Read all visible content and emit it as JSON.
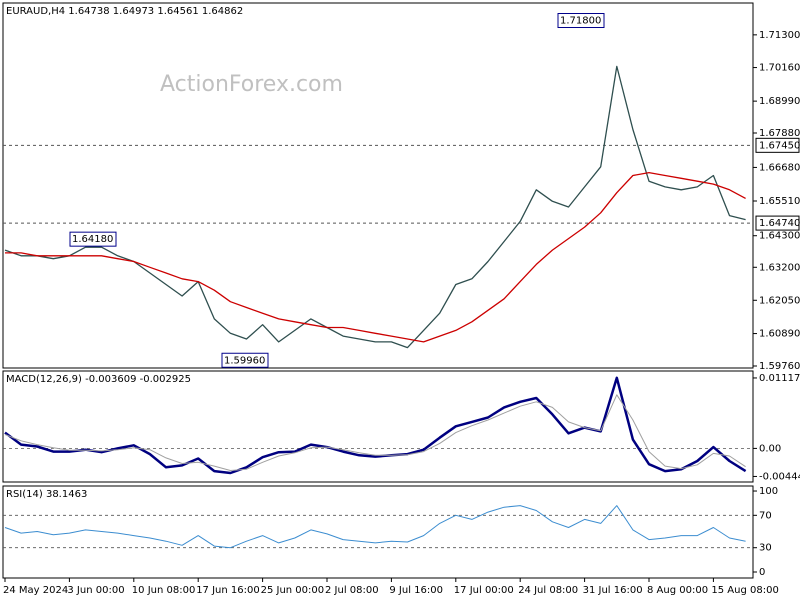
{
  "chart_data": [
    {
      "type": "line",
      "title": "EURAUD,H4  1.64738 1.64973 1.64561 1.64862",
      "watermark": "ActionForex.com",
      "ylim": [
        1.5969,
        1.7241
      ],
      "yticks": [
        {
          "value": 1.713,
          "label": "1.71300"
        },
        {
          "value": 1.7016,
          "label": "1.70160"
        },
        {
          "value": 1.6899,
          "label": "1.68990"
        },
        {
          "value": 1.6788,
          "label": "1.67880"
        },
        {
          "value": 1.6668,
          "label": "1.66680"
        },
        {
          "value": 1.6551,
          "label": "1.65510"
        },
        {
          "value": 1.643,
          "label": "1.64300"
        },
        {
          "value": 1.632,
          "label": "1.63200"
        },
        {
          "value": 1.6205,
          "label": "1.62050"
        },
        {
          "value": 1.6089,
          "label": "1.60890"
        },
        {
          "value": 1.5976,
          "label": "1.59760"
        }
      ],
      "hlines": [
        {
          "value": 1.6745,
          "label": "1.67450"
        },
        {
          "value": 1.6474,
          "label": "1.64740"
        }
      ],
      "annotations": [
        {
          "value": 1.718,
          "label": "1.71800"
        },
        {
          "value": 1.6418,
          "label": "1.64180"
        },
        {
          "value": 1.5996,
          "label": "1.59960"
        }
      ],
      "series": [
        {
          "color": "#2f4f4f",
          "values": [
            1.638,
            1.636,
            1.636,
            1.635,
            1.636,
            1.639,
            1.639,
            1.636,
            1.634,
            1.63,
            1.626,
            1.622,
            1.627,
            1.614,
            1.609,
            1.607,
            1.612,
            1.606,
            1.61,
            1.614,
            1.611,
            1.608,
            1.607,
            1.606,
            1.606,
            1.604,
            1.61,
            1.616,
            1.626,
            1.628,
            1.634,
            1.641,
            1.648,
            1.659,
            1.655,
            1.653,
            1.66,
            1.667,
            1.702,
            1.68,
            1.662,
            1.66,
            1.659,
            1.66,
            1.664,
            1.65,
            1.6486
          ]
        },
        {
          "color": "#cc0000",
          "values": [
            1.637,
            1.637,
            1.636,
            1.636,
            1.636,
            1.636,
            1.636,
            1.635,
            1.634,
            1.632,
            1.63,
            1.628,
            1.627,
            1.624,
            1.62,
            1.618,
            1.616,
            1.614,
            1.613,
            1.612,
            1.611,
            1.611,
            1.61,
            1.609,
            1.608,
            1.607,
            1.606,
            1.608,
            1.61,
            1.613,
            1.617,
            1.621,
            1.627,
            1.633,
            1.638,
            1.642,
            1.646,
            1.651,
            1.658,
            1.664,
            1.665,
            1.664,
            1.663,
            1.662,
            1.661,
            1.659,
            1.656
          ]
        }
      ]
    },
    {
      "type": "line",
      "title": "MACD(12,26,9) -0.003609 -0.002925",
      "ylim": [
        -0.00533,
        0.01228
      ],
      "yticks": [
        0.011176,
        {
          "value": 0,
          "label": "0.00"
        },
        -0.004449
      ],
      "hlines": [
        {
          "value": 0
        }
      ],
      "series": [
        {
          "color": "#000080",
          "width": 2.5,
          "values": [
            0.0025,
            0.0006,
            0.0003,
            -0.0005,
            -0.0005,
            -0.0002,
            -0.0006,
            0,
            0.0005,
            -0.0009,
            -0.003,
            -0.0027,
            -0.0016,
            -0.0036,
            -0.0039,
            -0.003,
            -0.0014,
            -0.0006,
            -0.0005,
            0.0006,
            0.0002,
            -0.0005,
            -0.0011,
            -0.0013,
            -0.0011,
            -0.0009,
            -0.0002,
            0.0017,
            0.0035,
            0.0042,
            0.0049,
            0.0065,
            0.0074,
            0.008,
            0.0054,
            0.0024,
            0.0033,
            0.0027,
            0.0112,
            0.0014,
            -0.0025,
            -0.0036,
            -0.0033,
            -0.002,
            0.0002,
            -0.002,
            -0.0036
          ]
        },
        {
          "color": "#a0a0a0",
          "width": 1,
          "values": [
            0.0022,
            0.0012,
            0.0006,
            0.0001,
            -0.0003,
            -0.0003,
            -0.0004,
            -0.0002,
            0.0001,
            -0.0002,
            -0.0015,
            -0.0024,
            -0.0022,
            -0.0028,
            -0.0035,
            -0.0033,
            -0.0022,
            -0.0012,
            -0.0007,
            0.0001,
            0.0002,
            -0.0002,
            -0.0007,
            -0.0011,
            -0.0011,
            -0.001,
            -0.0005,
            0.0008,
            0.0025,
            0.0036,
            0.0045,
            0.0056,
            0.0067,
            0.0074,
            0.0065,
            0.0042,
            0.0033,
            0.0028,
            0.0085,
            0.0045,
            -0.0005,
            -0.0028,
            -0.0032,
            -0.0026,
            -0.0008,
            -0.0012,
            -0.0029
          ]
        }
      ]
    },
    {
      "type": "line",
      "title": "RSI(14) 38.1463",
      "ylim": [
        -7.4,
        106.2
      ],
      "yticks": [
        100,
        70,
        30,
        0
      ],
      "hlines": [
        {
          "value": 70
        },
        {
          "value": 30
        }
      ],
      "categories": [
        "24 May 2024",
        null,
        null,
        null,
        "3 Jun 00:00",
        null,
        null,
        null,
        "10 Jun 08:00",
        null,
        null,
        null,
        "17 Jun 16:00",
        null,
        null,
        null,
        "25 Jun 00:00",
        null,
        null,
        null,
        "2 Jul 08:00",
        null,
        null,
        null,
        "9 Jul 16:00",
        null,
        null,
        null,
        "17 Jul 00:00",
        null,
        null,
        null,
        "24 Jul 08:00",
        null,
        null,
        null,
        "31 Jul 16:00",
        null,
        null,
        null,
        "8 Aug 00:00",
        null,
        null,
        null,
        "15 Aug 08:00",
        null,
        null
      ],
      "series": [
        {
          "color": "#3c8dd0",
          "width": 1,
          "values": [
            55,
            48,
            50,
            46,
            48,
            52,
            50,
            48,
            45,
            42,
            38,
            33,
            45,
            32,
            30,
            38,
            45,
            36,
            42,
            52,
            47,
            40,
            38,
            36,
            38,
            37,
            45,
            60,
            70,
            65,
            74,
            80,
            82,
            76,
            62,
            55,
            65,
            60,
            82,
            52,
            40,
            42,
            45,
            45,
            55,
            42,
            38
          ]
        }
      ]
    }
  ]
}
